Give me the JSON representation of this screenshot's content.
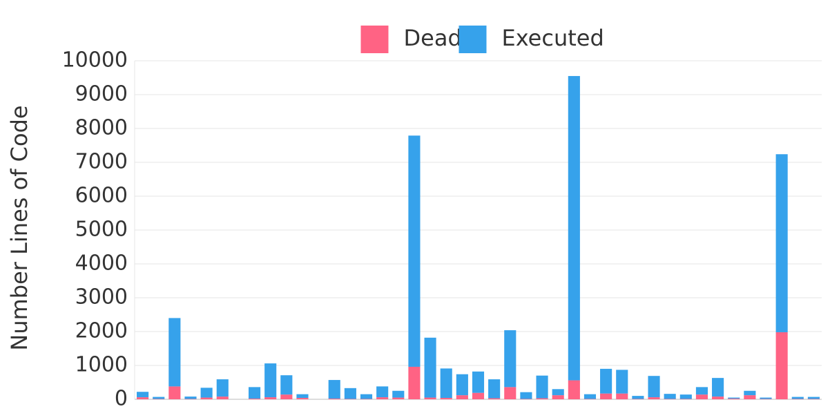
{
  "chart_data": {
    "type": "stacked_bar",
    "y_label": "Number Lines of Code",
    "categories": [
      null,
      null,
      null,
      null,
      null,
      null,
      null,
      null,
      null,
      null,
      null,
      null,
      null,
      null,
      null,
      null,
      null,
      null,
      null,
      null,
      null,
      null,
      null,
      null,
      null,
      null,
      null,
      null,
      null,
      null,
      null,
      null,
      null,
      null,
      null,
      null,
      null,
      null,
      null,
      null,
      null,
      null,
      null
    ],
    "series": [
      {
        "name": "Dead",
        "color": "#ff6384",
        "values": [
          60,
          10,
          380,
          10,
          50,
          80,
          0,
          20,
          60,
          140,
          40,
          0,
          20,
          10,
          10,
          60,
          50,
          960,
          50,
          40,
          120,
          190,
          30,
          360,
          10,
          30,
          120,
          560,
          10,
          170,
          170,
          10,
          60,
          10,
          10,
          140,
          80,
          20,
          120,
          10,
          1980,
          10,
          10
        ]
      },
      {
        "name": "Executed",
        "color": "#36a2eb",
        "values": [
          160,
          60,
          2020,
          70,
          290,
          510,
          0,
          340,
          1000,
          570,
          110,
          0,
          550,
          320,
          140,
          320,
          200,
          6830,
          1770,
          870,
          620,
          630,
          560,
          1680,
          200,
          670,
          180,
          8990,
          140,
          730,
          700,
          90,
          630,
          150,
          130,
          220,
          550,
          30,
          130,
          40,
          5260,
          60,
          60
        ]
      }
    ],
    "ylim": [
      0,
      10000
    ],
    "yticks": [
      0,
      1000,
      2000,
      3000,
      4000,
      5000,
      6000,
      7000,
      8000,
      9000,
      10000
    ],
    "grid": true,
    "legend": "top"
  }
}
